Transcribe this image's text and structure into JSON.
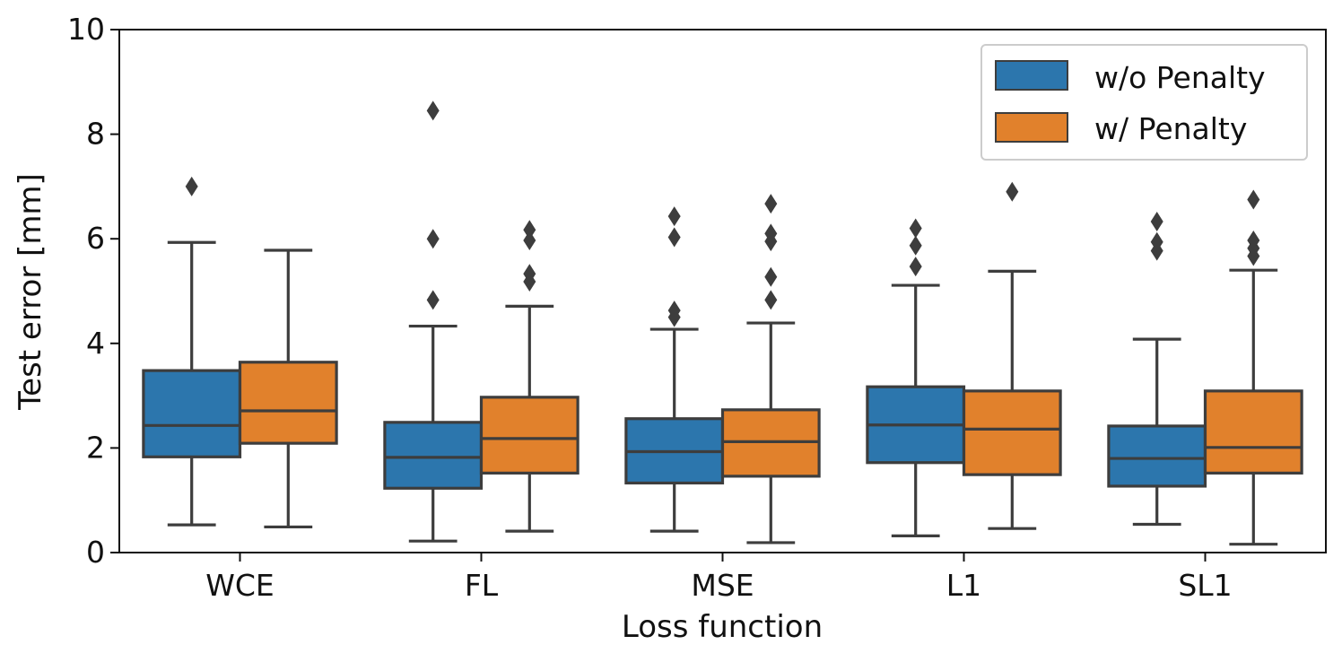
{
  "chart_data": {
    "type": "boxplot",
    "title": "",
    "xlabel": "Loss function",
    "ylabel": "Test error [mm]",
    "ylim": [
      0,
      10
    ],
    "yticks": [
      "0",
      "2",
      "4",
      "6",
      "8",
      "10"
    ],
    "categories": [
      "WCE",
      "FL",
      "MSE",
      "L1",
      "SL1"
    ],
    "legend": {
      "placement": "top-right"
    },
    "series": [
      {
        "name": "w/o Penalty",
        "color": "#2c76ad",
        "boxes": [
          {
            "whislo": 0.53,
            "q1": 1.83,
            "med": 2.43,
            "q3": 3.48,
            "whishi": 5.93,
            "fliers": [
              7.0
            ]
          },
          {
            "whislo": 0.22,
            "q1": 1.23,
            "med": 1.82,
            "q3": 2.49,
            "whishi": 4.33,
            "fliers": [
              4.83,
              6.0,
              8.45
            ]
          },
          {
            "whislo": 0.41,
            "q1": 1.33,
            "med": 1.93,
            "q3": 2.56,
            "whishi": 4.27,
            "fliers": [
              4.5,
              4.63,
              6.03,
              6.43
            ]
          },
          {
            "whislo": 0.32,
            "q1": 1.72,
            "med": 2.44,
            "q3": 3.17,
            "whishi": 5.11,
            "fliers": [
              5.47,
              5.87,
              6.2
            ]
          },
          {
            "whislo": 0.54,
            "q1": 1.27,
            "med": 1.8,
            "q3": 2.42,
            "whishi": 4.08,
            "fliers": [
              5.77,
              5.94,
              6.33
            ]
          }
        ]
      },
      {
        "name": "w/ Penalty",
        "color": "#e1812c",
        "boxes": [
          {
            "whislo": 0.49,
            "q1": 2.09,
            "med": 2.71,
            "q3": 3.64,
            "whishi": 5.78,
            "fliers": []
          },
          {
            "whislo": 0.41,
            "q1": 1.52,
            "med": 2.18,
            "q3": 2.97,
            "whishi": 4.71,
            "fliers": [
              5.18,
              5.33,
              5.97,
              6.17
            ]
          },
          {
            "whislo": 0.19,
            "q1": 1.46,
            "med": 2.12,
            "q3": 2.73,
            "whishi": 4.39,
            "fliers": [
              4.83,
              5.27,
              5.95,
              6.1,
              6.67
            ]
          },
          {
            "whislo": 0.46,
            "q1": 1.49,
            "med": 2.36,
            "q3": 3.09,
            "whishi": 5.38,
            "fliers": [
              6.9
            ]
          },
          {
            "whislo": 0.16,
            "q1": 1.52,
            "med": 2.01,
            "q3": 3.09,
            "whishi": 5.4,
            "fliers": [
              5.67,
              5.82,
              5.97,
              6.75
            ]
          }
        ]
      }
    ]
  }
}
